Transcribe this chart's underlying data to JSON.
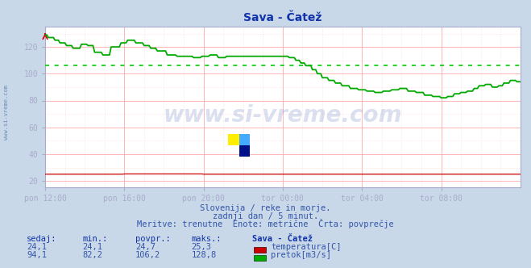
{
  "title": "Sava - Čatež",
  "background_color": "#c8d8e8",
  "plot_bg_color": "#ffffff",
  "grid_color_major": "#ffaaaa",
  "grid_color_minor": "#ffcccc",
  "x_labels": [
    "pon 12:00",
    "pon 16:00",
    "pon 20:00",
    "tor 00:00",
    "tor 04:00",
    "tor 08:00"
  ],
  "y_ticks": [
    20,
    40,
    60,
    80,
    100,
    120
  ],
  "ylim": [
    15,
    135
  ],
  "xlim": [
    0,
    288
  ],
  "avg_line_value": 106.2,
  "avg_line_color": "#00cc00",
  "temperature_color": "#cc0000",
  "flow_color": "#00aa00",
  "subtitle_lines": [
    "Slovenija / reke in morje.",
    "zadnji dan / 5 minut.",
    "Meritve: trenutne  Enote: metrične  Črta: povprečje"
  ],
  "table_headers": [
    "sedaj:",
    "min.:",
    "povpr.:",
    "maks.:",
    "Sava - Čatež"
  ],
  "table_row1": [
    "24,1",
    "24,1",
    "24,7",
    "25,3"
  ],
  "table_row2": [
    "94,1",
    "82,2",
    "106,2",
    "128,8"
  ],
  "label_temp": "temperatura[C]",
  "label_flow": "pretok[m3/s]",
  "text_color_blue": "#3355aa",
  "text_color_dark": "#1133aa",
  "watermark": "www.si-vreme.com",
  "watermark_color": "#3355aa",
  "watermark_alpha": 0.18,
  "side_label": "www.si-vreme.com",
  "side_label_color": "#5577aa",
  "spine_color": "#aaaacc"
}
